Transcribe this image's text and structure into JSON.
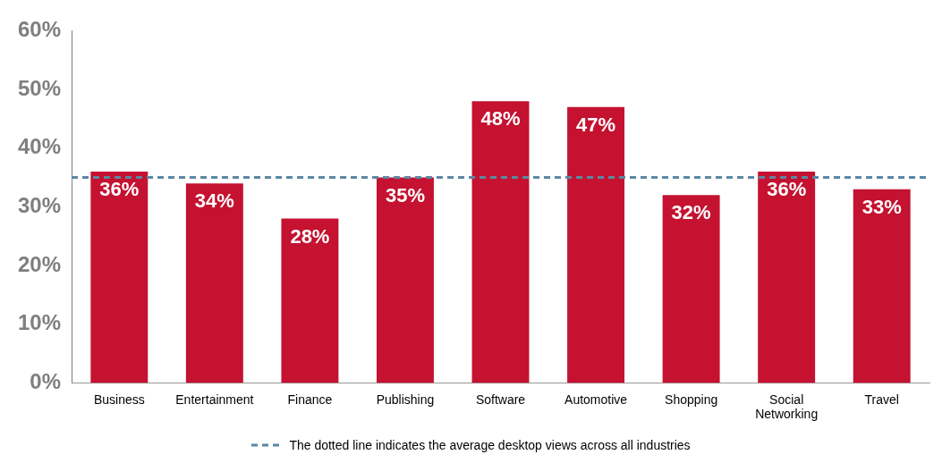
{
  "chart_data": {
    "type": "bar",
    "categories": [
      "Business",
      "Entertainment",
      "Finance",
      "Publishing",
      "Software",
      "Automotive",
      "Shopping",
      "Social Networking",
      "Travel"
    ],
    "values": [
      36,
      34,
      28,
      35,
      48,
      47,
      32,
      36,
      33
    ],
    "color": "#c41230",
    "ylim": [
      0,
      60
    ],
    "yticks": [
      {
        "value": 0,
        "label": "0%"
      },
      {
        "value": 10,
        "label": "10%"
      },
      {
        "value": 20,
        "label": "20%"
      },
      {
        "value": 30,
        "label": "30%"
      },
      {
        "value": 40,
        "label": "40%"
      },
      {
        "value": 50,
        "label": "50%"
      },
      {
        "value": 60,
        "label": "60%"
      }
    ],
    "value_labels": [
      "36%",
      "34%",
      "28%",
      "35%",
      "48%",
      "47%",
      "32%",
      "36%",
      "33%"
    ],
    "ref_lines": [
      {
        "axis": "y",
        "value": 35,
        "label": "The dotted line indicates the average desktop views across all industries",
        "color": "#5b87a3",
        "line_style": "dashed"
      }
    ],
    "grid": false
  }
}
